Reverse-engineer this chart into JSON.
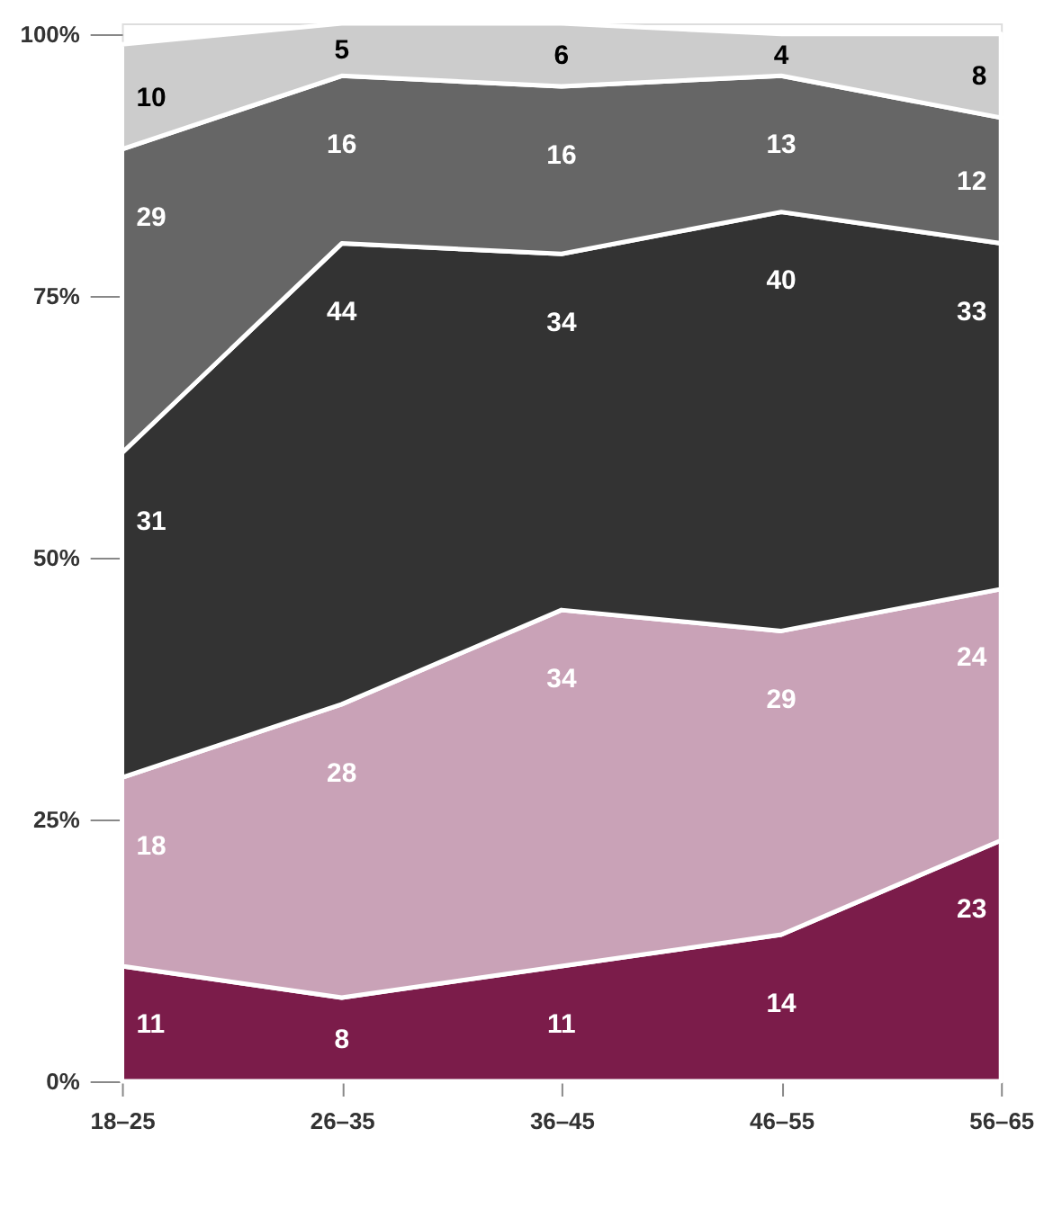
{
  "chart_data": {
    "type": "area",
    "stacked": true,
    "data_labels": true,
    "grid": false,
    "categories": [
      "18–25",
      "26–35",
      "36–45",
      "46–55",
      "56–65"
    ],
    "series": [
      {
        "color": "#7b1c4a",
        "values": [
          11,
          8,
          11,
          14,
          23
        ]
      },
      {
        "color": "#c9a2b7",
        "values": [
          18,
          28,
          34,
          29,
          24
        ]
      },
      {
        "color": "#333333",
        "values": [
          31,
          44,
          34,
          40,
          33
        ]
      },
      {
        "color": "#666666",
        "values": [
          29,
          16,
          16,
          13,
          12
        ]
      },
      {
        "color": "#cccccc",
        "values": [
          10,
          5,
          6,
          4,
          8
        ]
      }
    ],
    "ylim": [
      0,
      101
    ],
    "yticks": [
      {
        "value": 0,
        "label": "0%"
      },
      {
        "value": 25,
        "label": "25%"
      },
      {
        "value": 50,
        "label": "50%"
      },
      {
        "value": 75,
        "label": "75%"
      },
      {
        "value": 100,
        "label": "100%"
      }
    ]
  }
}
